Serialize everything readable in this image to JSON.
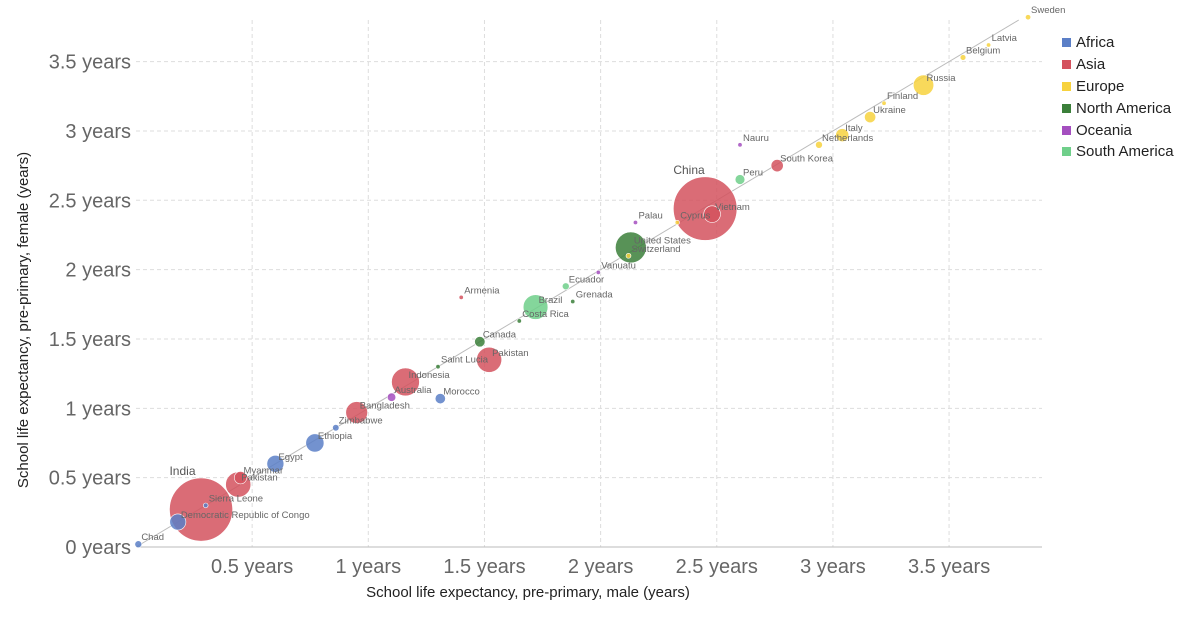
{
  "chart_data": {
    "type": "scatter",
    "xlabel": "School life expectancy, pre-primary, male (years)",
    "ylabel": "School life expectancy, pre-primary, female (years)",
    "xlim": [
      0,
      3.9
    ],
    "ylim": [
      0,
      3.8
    ],
    "x_ticks": [
      {
        "value": 0.5,
        "label": "0.5 years"
      },
      {
        "value": 1,
        "label": "1 years"
      },
      {
        "value": 1.5,
        "label": "1.5 years"
      },
      {
        "value": 2,
        "label": "2 years"
      },
      {
        "value": 2.5,
        "label": "2.5 years"
      },
      {
        "value": 3,
        "label": "3 years"
      },
      {
        "value": 3.5,
        "label": "3.5 years"
      }
    ],
    "y_ticks": [
      {
        "value": 0,
        "label": "0 years"
      },
      {
        "value": 0.5,
        "label": "0.5 years"
      },
      {
        "value": 1,
        "label": "1 years"
      },
      {
        "value": 1.5,
        "label": "1.5 years"
      },
      {
        "value": 2,
        "label": "2 years"
      },
      {
        "value": 2.5,
        "label": "2.5 years"
      },
      {
        "value": 3,
        "label": "3 years"
      },
      {
        "value": 3.5,
        "label": "3.5 years"
      }
    ],
    "grid": true,
    "legend_position": "top-right",
    "size_encoding": "population",
    "series": [
      {
        "name": "Africa",
        "color": "#5b7fc7"
      },
      {
        "name": "Asia",
        "color": "#d4525e"
      },
      {
        "name": "Europe",
        "color": "#f7d23e"
      },
      {
        "name": "North America",
        "color": "#3b7f3a"
      },
      {
        "name": "Oceania",
        "color": "#a44fbf"
      },
      {
        "name": "South America",
        "color": "#6fcf8a"
      }
    ],
    "points": [
      {
        "label": "Chad",
        "region": "Africa",
        "x": 0.01,
        "y": 0.02,
        "pop": 17
      },
      {
        "label": "Democratic Republic of Congo",
        "region": "Africa",
        "x": 0.18,
        "y": 0.18,
        "pop": 90
      },
      {
        "label": "Sierra Leone",
        "region": "Africa",
        "x": 0.3,
        "y": 0.3,
        "pop": 8
      },
      {
        "label": "India",
        "region": "Asia",
        "x": 0.28,
        "y": 0.27,
        "pop": 1380
      },
      {
        "label": "Pakistan",
        "region": "Asia",
        "x": 0.44,
        "y": 0.45,
        "pop": 220
      },
      {
        "label": "Myanmar",
        "region": "Asia",
        "x": 0.45,
        "y": 0.5,
        "pop": 54
      },
      {
        "label": "Egypt",
        "region": "Africa",
        "x": 0.6,
        "y": 0.6,
        "pop": 100
      },
      {
        "label": "Ethiopia",
        "region": "Africa",
        "x": 0.77,
        "y": 0.75,
        "pop": 115
      },
      {
        "label": "Zimbabwe",
        "region": "Africa",
        "x": 0.86,
        "y": 0.86,
        "pop": 15
      },
      {
        "label": "Bangladesh",
        "region": "Asia",
        "x": 0.95,
        "y": 0.97,
        "pop": 165
      },
      {
        "label": "Australia",
        "region": "Oceania",
        "x": 1.1,
        "y": 1.08,
        "pop": 25
      },
      {
        "label": "Indonesia",
        "region": "Asia",
        "x": 1.16,
        "y": 1.19,
        "pop": 270
      },
      {
        "label": "Morocco",
        "region": "Africa",
        "x": 1.31,
        "y": 1.07,
        "pop": 37
      },
      {
        "label": "Saint Lucia",
        "region": "North America",
        "x": 1.3,
        "y": 1.3,
        "pop": 0.2
      },
      {
        "label": "Pakistan",
        "region": "Asia",
        "x": 1.52,
        "y": 1.35,
        "pop": 220
      },
      {
        "label": "Canada",
        "region": "North America",
        "x": 1.48,
        "y": 1.48,
        "pop": 38
      },
      {
        "label": "Armenia",
        "region": "Asia",
        "x": 1.4,
        "y": 1.8,
        "pop": 3
      },
      {
        "label": "Costa Rica",
        "region": "North America",
        "x": 1.65,
        "y": 1.63,
        "pop": 5
      },
      {
        "label": "Brazil",
        "region": "South America",
        "x": 1.72,
        "y": 1.73,
        "pop": 212
      },
      {
        "label": "Ecuador",
        "region": "South America",
        "x": 1.85,
        "y": 1.88,
        "pop": 17
      },
      {
        "label": "Grenada",
        "region": "North America",
        "x": 1.88,
        "y": 1.77,
        "pop": 0.1
      },
      {
        "label": "Vanuatu",
        "region": "Oceania",
        "x": 1.99,
        "y": 1.98,
        "pop": 0.3
      },
      {
        "label": "Switzerland",
        "region": "Europe",
        "x": 2.12,
        "y": 2.1,
        "pop": 8.6
      },
      {
        "label": "United States",
        "region": "North America",
        "x": 2.13,
        "y": 2.16,
        "pop": 330
      },
      {
        "label": "Palau",
        "region": "Oceania",
        "x": 2.15,
        "y": 2.34,
        "pop": 0.02
      },
      {
        "label": "Cyprus",
        "region": "Europe",
        "x": 2.33,
        "y": 2.34,
        "pop": 1.2
      },
      {
        "label": "China",
        "region": "Asia",
        "x": 2.45,
        "y": 2.44,
        "pop": 1400
      },
      {
        "label": "Vietnam",
        "region": "Asia",
        "x": 2.48,
        "y": 2.4,
        "pop": 97
      },
      {
        "label": "Peru",
        "region": "South America",
        "x": 2.6,
        "y": 2.65,
        "pop": 33
      },
      {
        "label": "Nauru",
        "region": "Oceania",
        "x": 2.6,
        "y": 2.9,
        "pop": 0.01
      },
      {
        "label": "South Korea",
        "region": "Asia",
        "x": 2.76,
        "y": 2.75,
        "pop": 52
      },
      {
        "label": "Netherlands",
        "region": "Europe",
        "x": 2.94,
        "y": 2.9,
        "pop": 17
      },
      {
        "label": "Italy",
        "region": "Europe",
        "x": 3.04,
        "y": 2.97,
        "pop": 60
      },
      {
        "label": "Ukraine",
        "region": "Europe",
        "x": 3.16,
        "y": 3.1,
        "pop": 44
      },
      {
        "label": "Finland",
        "region": "Europe",
        "x": 3.22,
        "y": 3.2,
        "pop": 5.5
      },
      {
        "label": "Russia",
        "region": "Europe",
        "x": 3.39,
        "y": 3.33,
        "pop": 145
      },
      {
        "label": "Belgium",
        "region": "Europe",
        "x": 3.56,
        "y": 3.53,
        "pop": 11.5
      },
      {
        "label": "Latvia",
        "region": "Europe",
        "x": 3.67,
        "y": 3.62,
        "pop": 1.9
      },
      {
        "label": "Sweden",
        "region": "Europe",
        "x": 3.84,
        "y": 3.82,
        "pop": 10
      }
    ]
  }
}
